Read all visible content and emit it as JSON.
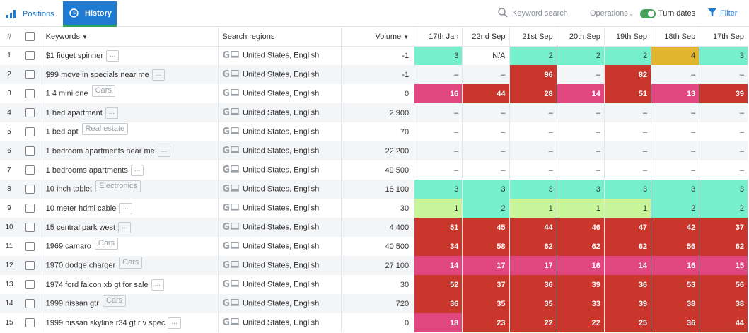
{
  "tabs": [
    {
      "label": "Positions",
      "icon": "bar-chart-icon",
      "active": false
    },
    {
      "label": "History",
      "icon": "clock-icon",
      "active": true
    }
  ],
  "toolbar": {
    "search_label": "Keyword search",
    "operations_label": "Operations",
    "turn_dates_label": "Turn dates",
    "turn_dates_on": true,
    "filter_label": "Filter"
  },
  "columns": {
    "num": "#",
    "keywords": "Keywords",
    "regions": "Search regions",
    "volume": "Volume",
    "dates": [
      "17th Jan",
      "22nd Sep",
      "21st Sep",
      "20th Sep",
      "19th Sep",
      "18th Sep",
      "17th Sep"
    ]
  },
  "colors": {
    "teal": "#76f0cc",
    "yellow": "#e2b52e",
    "red": "#c9372c",
    "pink": "#e0477f",
    "lime": "#c8f59a",
    "accent": "#1f7ad1",
    "toggle_on": "#46a35a"
  },
  "rows": [
    {
      "num": "1",
      "keyword": "$1 fidget spinner",
      "tag": "",
      "region": "United States, English",
      "volume": "-1",
      "positions": [
        {
          "v": "3",
          "c": "teal"
        },
        {
          "v": "N/A",
          "c": "none"
        },
        {
          "v": "2",
          "c": "teal"
        },
        {
          "v": "2",
          "c": "teal"
        },
        {
          "v": "2",
          "c": "teal"
        },
        {
          "v": "4",
          "c": "yellow"
        },
        {
          "v": "3",
          "c": "teal"
        }
      ]
    },
    {
      "num": "2",
      "keyword": "$99 move in specials near me",
      "tag": "",
      "region": "United States, English",
      "volume": "-1",
      "positions": [
        {
          "v": "–",
          "c": "none"
        },
        {
          "v": "–",
          "c": "none"
        },
        {
          "v": "96",
          "c": "red"
        },
        {
          "v": "–",
          "c": "none"
        },
        {
          "v": "82",
          "c": "red"
        },
        {
          "v": "–",
          "c": "none"
        },
        {
          "v": "–",
          "c": "none"
        }
      ]
    },
    {
      "num": "3",
      "keyword": "1 4 mini one",
      "tag": "Cars",
      "region": "United States, English",
      "volume": "0",
      "positions": [
        {
          "v": "16",
          "c": "pink"
        },
        {
          "v": "44",
          "c": "red"
        },
        {
          "v": "28",
          "c": "red"
        },
        {
          "v": "14",
          "c": "pink"
        },
        {
          "v": "51",
          "c": "red"
        },
        {
          "v": "13",
          "c": "pink"
        },
        {
          "v": "39",
          "c": "red"
        }
      ]
    },
    {
      "num": "4",
      "keyword": "1 bed apartment",
      "tag": "",
      "region": "United States, English",
      "volume": "2 900",
      "positions": [
        {
          "v": "–",
          "c": "none"
        },
        {
          "v": "–",
          "c": "none"
        },
        {
          "v": "–",
          "c": "none"
        },
        {
          "v": "–",
          "c": "none"
        },
        {
          "v": "–",
          "c": "none"
        },
        {
          "v": "–",
          "c": "none"
        },
        {
          "v": "–",
          "c": "none"
        }
      ]
    },
    {
      "num": "5",
      "keyword": "1 bed apt",
      "tag": "Real estate",
      "region": "United States, English",
      "volume": "70",
      "positions": [
        {
          "v": "–",
          "c": "none"
        },
        {
          "v": "–",
          "c": "none"
        },
        {
          "v": "–",
          "c": "none"
        },
        {
          "v": "–",
          "c": "none"
        },
        {
          "v": "–",
          "c": "none"
        },
        {
          "v": "–",
          "c": "none"
        },
        {
          "v": "–",
          "c": "none"
        }
      ]
    },
    {
      "num": "6",
      "keyword": "1 bedroom apartments near me",
      "tag": "",
      "region": "United States, English",
      "volume": "22 200",
      "positions": [
        {
          "v": "–",
          "c": "none"
        },
        {
          "v": "–",
          "c": "none"
        },
        {
          "v": "–",
          "c": "none"
        },
        {
          "v": "–",
          "c": "none"
        },
        {
          "v": "–",
          "c": "none"
        },
        {
          "v": "–",
          "c": "none"
        },
        {
          "v": "–",
          "c": "none"
        }
      ]
    },
    {
      "num": "7",
      "keyword": "1 bedrooms apartments",
      "tag": "",
      "region": "United States, English",
      "volume": "49 500",
      "positions": [
        {
          "v": "–",
          "c": "none"
        },
        {
          "v": "–",
          "c": "none"
        },
        {
          "v": "–",
          "c": "none"
        },
        {
          "v": "–",
          "c": "none"
        },
        {
          "v": "–",
          "c": "none"
        },
        {
          "v": "–",
          "c": "none"
        },
        {
          "v": "–",
          "c": "none"
        }
      ]
    },
    {
      "num": "8",
      "keyword": "10 inch tablet",
      "tag": "Electronics",
      "region": "United States, English",
      "volume": "18 100",
      "positions": [
        {
          "v": "3",
          "c": "teal"
        },
        {
          "v": "3",
          "c": "teal"
        },
        {
          "v": "3",
          "c": "teal"
        },
        {
          "v": "3",
          "c": "teal"
        },
        {
          "v": "3",
          "c": "teal"
        },
        {
          "v": "3",
          "c": "teal"
        },
        {
          "v": "3",
          "c": "teal"
        }
      ]
    },
    {
      "num": "9",
      "keyword": "10 meter hdmi cable",
      "tag": "",
      "region": "United States, English",
      "volume": "30",
      "positions": [
        {
          "v": "1",
          "c": "lime"
        },
        {
          "v": "2",
          "c": "teal"
        },
        {
          "v": "1",
          "c": "lime"
        },
        {
          "v": "1",
          "c": "lime"
        },
        {
          "v": "1",
          "c": "lime"
        },
        {
          "v": "2",
          "c": "teal"
        },
        {
          "v": "2",
          "c": "teal"
        }
      ]
    },
    {
      "num": "10",
      "keyword": "15 central park west",
      "tag": "",
      "region": "United States, English",
      "volume": "4 400",
      "positions": [
        {
          "v": "51",
          "c": "red"
        },
        {
          "v": "45",
          "c": "red"
        },
        {
          "v": "44",
          "c": "red"
        },
        {
          "v": "46",
          "c": "red"
        },
        {
          "v": "47",
          "c": "red"
        },
        {
          "v": "42",
          "c": "red"
        },
        {
          "v": "37",
          "c": "red"
        }
      ]
    },
    {
      "num": "11",
      "keyword": "1969 camaro",
      "tag": "Cars",
      "region": "United States, English",
      "volume": "40 500",
      "positions": [
        {
          "v": "34",
          "c": "red"
        },
        {
          "v": "58",
          "c": "red"
        },
        {
          "v": "62",
          "c": "red"
        },
        {
          "v": "62",
          "c": "red"
        },
        {
          "v": "62",
          "c": "red"
        },
        {
          "v": "56",
          "c": "red"
        },
        {
          "v": "62",
          "c": "red"
        }
      ]
    },
    {
      "num": "12",
      "keyword": "1970 dodge charger",
      "tag": "Cars",
      "region": "United States, English",
      "volume": "27 100",
      "positions": [
        {
          "v": "14",
          "c": "pink"
        },
        {
          "v": "17",
          "c": "pink"
        },
        {
          "v": "17",
          "c": "pink"
        },
        {
          "v": "16",
          "c": "pink"
        },
        {
          "v": "14",
          "c": "pink"
        },
        {
          "v": "16",
          "c": "pink"
        },
        {
          "v": "15",
          "c": "pink"
        }
      ]
    },
    {
      "num": "13",
      "keyword": "1974 ford falcon xb gt for sale",
      "tag": "",
      "region": "United States, English",
      "volume": "30",
      "positions": [
        {
          "v": "52",
          "c": "red"
        },
        {
          "v": "37",
          "c": "red"
        },
        {
          "v": "36",
          "c": "red"
        },
        {
          "v": "39",
          "c": "red"
        },
        {
          "v": "36",
          "c": "red"
        },
        {
          "v": "53",
          "c": "red"
        },
        {
          "v": "56",
          "c": "red"
        }
      ]
    },
    {
      "num": "14",
      "keyword": "1999 nissan gtr",
      "tag": "Cars",
      "region": "United States, English",
      "volume": "720",
      "positions": [
        {
          "v": "36",
          "c": "red"
        },
        {
          "v": "35",
          "c": "red"
        },
        {
          "v": "35",
          "c": "red"
        },
        {
          "v": "33",
          "c": "red"
        },
        {
          "v": "39",
          "c": "red"
        },
        {
          "v": "38",
          "c": "red"
        },
        {
          "v": "38",
          "c": "red"
        }
      ]
    },
    {
      "num": "15",
      "keyword": "1999 nissan skyline r34 gt r v spec",
      "tag": "",
      "region": "United States, English",
      "volume": "0",
      "positions": [
        {
          "v": "18",
          "c": "pink"
        },
        {
          "v": "23",
          "c": "red"
        },
        {
          "v": "22",
          "c": "red"
        },
        {
          "v": "22",
          "c": "red"
        },
        {
          "v": "25",
          "c": "red"
        },
        {
          "v": "36",
          "c": "red"
        },
        {
          "v": "44",
          "c": "red"
        }
      ]
    }
  ]
}
